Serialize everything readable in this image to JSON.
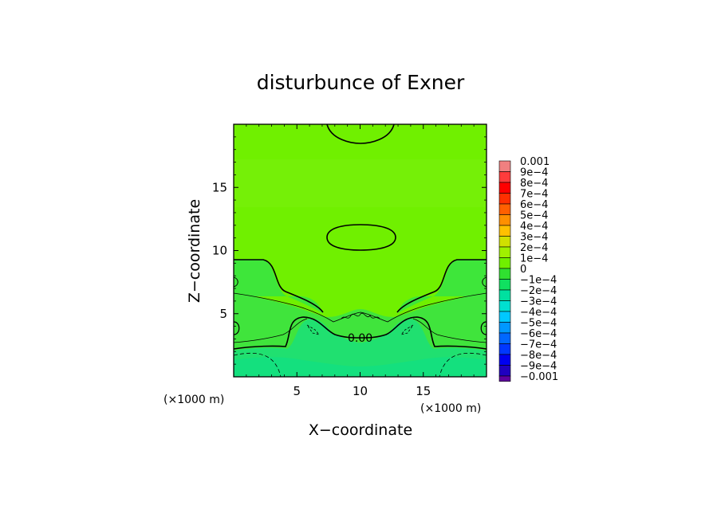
{
  "chart_data": {
    "type": "heatmap",
    "title": "disturbunce of Exner",
    "xlabel": "X−coordinate",
    "ylabel": "Z−coordinate",
    "x_unit": "(×1000 m)",
    "y_unit": "(×1000 m)",
    "xlim": [
      0,
      20
    ],
    "ylim": [
      0,
      20
    ],
    "x_ticks": [
      5,
      10,
      15
    ],
    "y_ticks": [
      5,
      10,
      15
    ],
    "x_tick_labels": [
      "5",
      "10",
      "15"
    ],
    "y_tick_labels": [
      "5",
      "10",
      "15"
    ],
    "colorbar": {
      "levels": [
        0.001,
        0.0009,
        0.0008,
        0.0007,
        0.0006,
        0.0005,
        0.0004,
        0.0003,
        0.0002,
        0.0001,
        0,
        -0.0001,
        -0.0002,
        -0.0003,
        -0.0004,
        -0.0005,
        -0.0006,
        -0.0007,
        -0.0008,
        -0.0009,
        -0.001
      ],
      "labels": [
        "0.001",
        "9e−4",
        "8e−4",
        "7e−4",
        "6e−4",
        "5e−4",
        "4e−4",
        "3e−4",
        "2e−4",
        "1e−4",
        "0",
        "−1e−4",
        "−2e−4",
        "−3e−4",
        "−4e−4",
        "−5e−4",
        "−6e−4",
        "−7e−4",
        "−8e−4",
        "−9e−4",
        "−0.001"
      ],
      "colors": [
        "#f08080",
        "#ff3c3c",
        "#ff0000",
        "#ff3000",
        "#ff6000",
        "#ff9000",
        "#ffc000",
        "#d0e000",
        "#a0f000",
        "#70f000",
        "#30e030",
        "#10e060",
        "#00e0a0",
        "#00e0d0",
        "#00c8ff",
        "#0098ff",
        "#0068ff",
        "#0038ff",
        "#0000f0",
        "#2000c0",
        "#6000a0"
      ]
    },
    "contour_labels": [
      "0.00"
    ],
    "field_description_regions": {
      "upper_region_value_approx": 0.00012,
      "lower_region_value_approx": -8e-05
    }
  }
}
